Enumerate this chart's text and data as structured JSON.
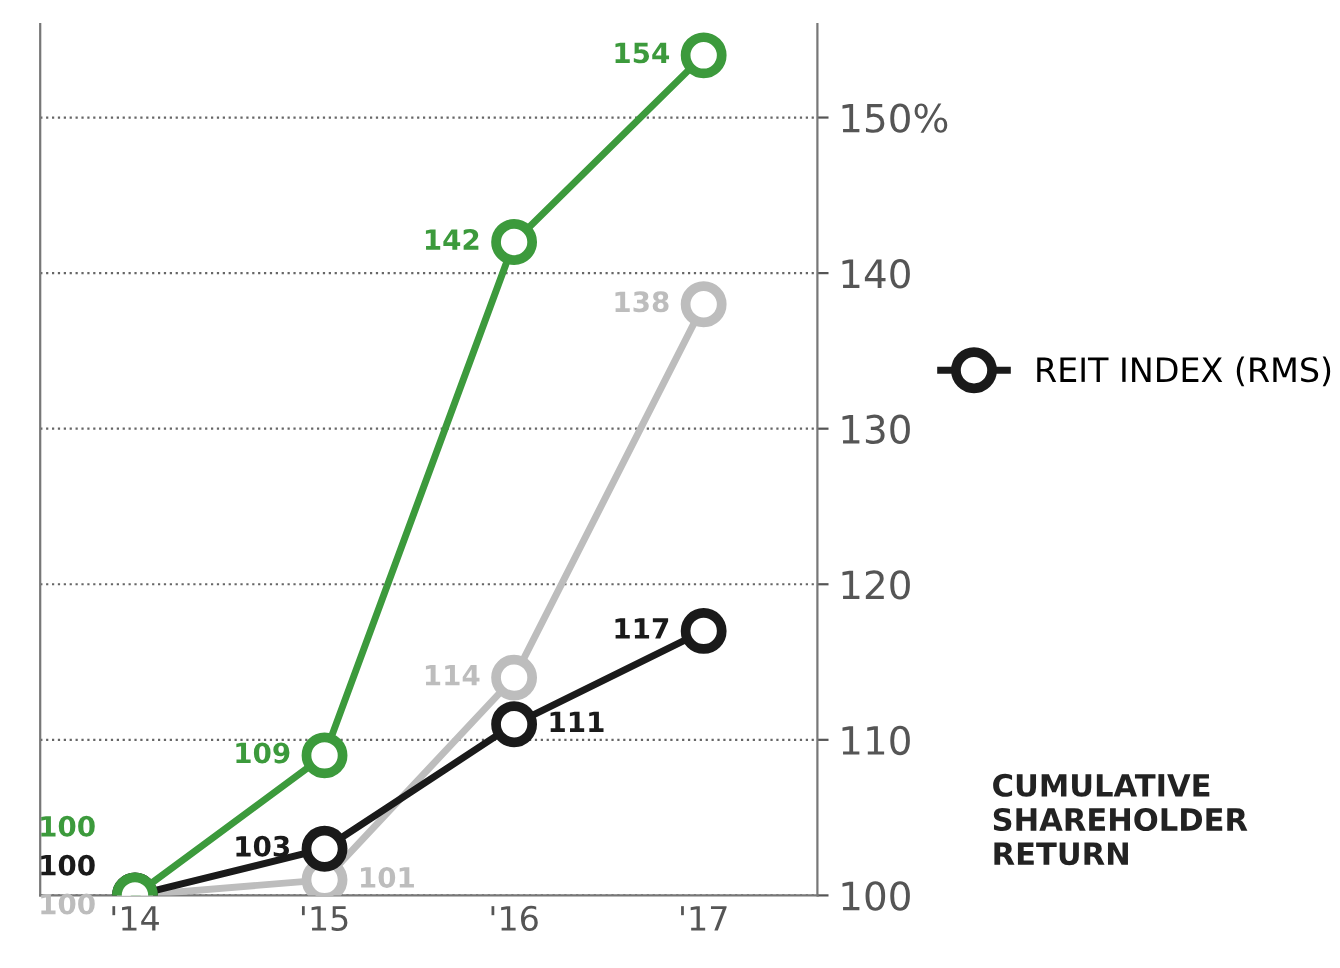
{
  "chart_data": {
    "type": "line",
    "categories": [
      "'14",
      "'15",
      "'16",
      "'17"
    ],
    "series": [
      {
        "color": "#3c9a3c",
        "values": [
          100,
          109,
          142,
          154
        ]
      },
      {
        "name": "REIT INDEX (RMS)",
        "color": "#1a1a1a",
        "values": [
          100,
          103,
          111,
          117
        ]
      },
      {
        "color": "#bdbdbd",
        "values": [
          100,
          101,
          114,
          138
        ]
      }
    ],
    "ylim": [
      100,
      156
    ],
    "yticks": [
      100,
      110,
      120,
      130,
      140,
      {
        "value": 150,
        "label": "150%"
      }
    ],
    "grid": "y",
    "legend": "right",
    "marker": "circle",
    "line_style": "solid",
    "data_labels": true,
    "annotations": [
      "CUMULATIVE\nSHAREHOLDER\nRETURN"
    ]
  }
}
